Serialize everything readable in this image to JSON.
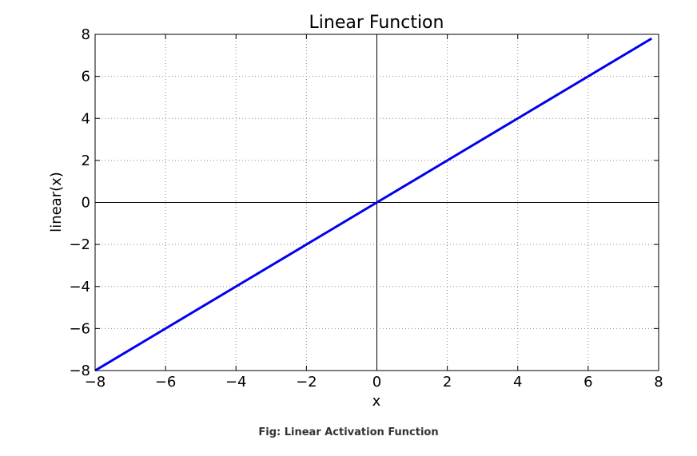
{
  "chart_data": {
    "type": "line",
    "title": "Linear Function",
    "xlabel": "x",
    "ylabel": "linear(x)",
    "xlim": [
      -8,
      8
    ],
    "ylim": [
      -8,
      8
    ],
    "x_ticks": [
      -8,
      -6,
      -4,
      -2,
      0,
      2,
      4,
      6,
      8
    ],
    "y_ticks": [
      -8,
      -6,
      -4,
      -2,
      0,
      2,
      4,
      6,
      8
    ],
    "x_tick_labels": [
      "−8",
      "−6",
      "−4",
      "−2",
      "0",
      "2",
      "4",
      "6",
      "8"
    ],
    "y_tick_labels": [
      "−8",
      "−6",
      "−4",
      "−2",
      "0",
      "2",
      "4",
      "6",
      "8"
    ],
    "grid": true,
    "zero_lines": true,
    "series": [
      {
        "color": "#0000ee",
        "x": [
          -8,
          -6,
          -4,
          -2,
          0,
          2,
          4,
          6,
          7.8
        ],
        "y": [
          -8,
          -6,
          -4,
          -2,
          0,
          2,
          4,
          6,
          7.8
        ]
      }
    ]
  },
  "caption": "Fig: Linear Activation Function"
}
